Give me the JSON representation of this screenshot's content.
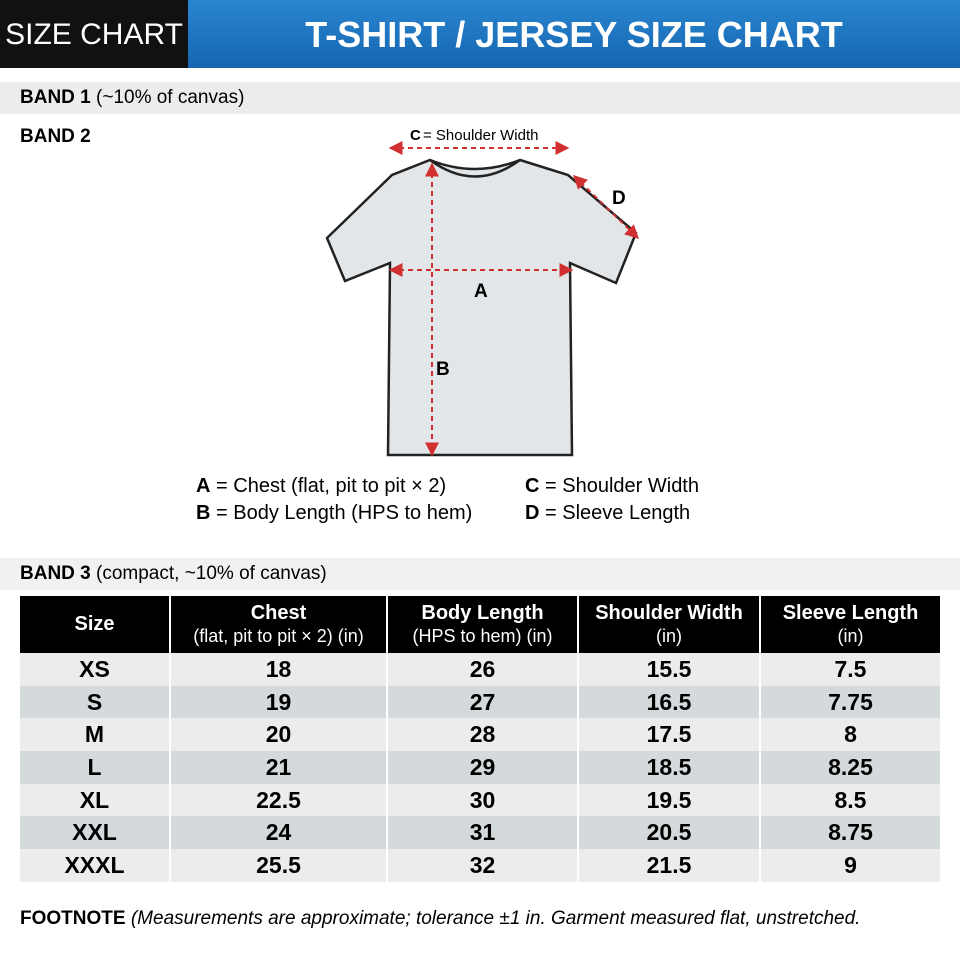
{
  "header": {
    "tag": "SIZE CHART",
    "title": "T-SHIRT / JERSEY SIZE CHART"
  },
  "band1": {
    "label": "BAND 1",
    "note": "(~10% of canvas)"
  },
  "band2": {
    "label": "BAND 2",
    "diagram": {
      "c_key": "C",
      "c_text": "= Shoulder Width",
      "a": "A",
      "b": "B",
      "d": "D"
    },
    "legend": [
      {
        "key": "A",
        "text": "= Chest (flat, pit to pit × 2)"
      },
      {
        "key": "C",
        "text": "= Shoulder Width"
      },
      {
        "key": "B",
        "text": "= Body Length (HPS to hem)"
      },
      {
        "key": "D",
        "text": "= Sleeve Length"
      }
    ]
  },
  "band3": {
    "label": "BAND 3",
    "note": "(compact, ~10% of canvas)"
  },
  "table": {
    "columns": [
      {
        "title": "Size"
      },
      {
        "title": "Chest",
        "unit": "(flat, pit to pit × 2) (in)"
      },
      {
        "title": "Body Length",
        "unit": "(HPS to hem) (in)"
      },
      {
        "title": "Shoulder Width",
        "unit": "(in)"
      },
      {
        "title": "Sleeve Length",
        "unit": "(in)"
      }
    ],
    "rows": [
      [
        "XS",
        18,
        26,
        15.5,
        7.5
      ],
      [
        "S",
        19,
        27,
        16.5,
        7.75
      ],
      [
        "M",
        20,
        28,
        17.5,
        8
      ],
      [
        "L",
        21,
        29,
        18.5,
        8.25
      ],
      [
        "XL",
        22.5,
        30,
        19.5,
        8.5
      ],
      [
        "XXL",
        24,
        31,
        20.5,
        8.75
      ],
      [
        "XXXL",
        25.5,
        32,
        21.5,
        9
      ]
    ]
  },
  "footnote": {
    "label": "FOOTNOTE",
    "text": "(Measurements are approximate; tolerance ±1 in. Garment measured flat, unstretched."
  }
}
